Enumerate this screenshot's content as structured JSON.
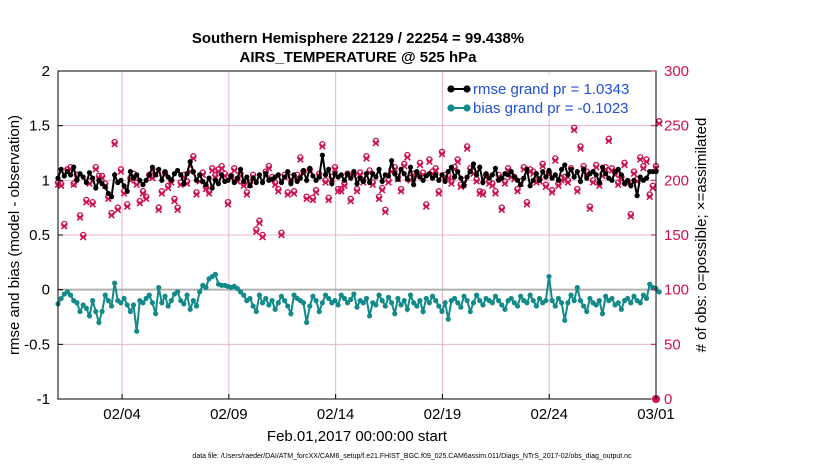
{
  "chart_data": {
    "type": "line",
    "title_line1": "Southern Hemisphere 22129 / 22254 = 99.438%",
    "title_line2": "AIRS_TEMPERATURE @ 525 hPa",
    "xlabel": "Feb.01,2017 00:00:00 start",
    "ylabel_left": "rmse and bias (model - observation)",
    "ylabel_right": "# of obs: o=possible; ×=assimilated",
    "footer": "data file: /Users/raeder/DAI/ATM_forcXX/CAM6_setup/f.e21.FHIST_BGC.f09_025.CAM6assim.011/Diags_NTrS_2017-02/obs_diag_output.nc",
    "x_ticks": [
      "02/04",
      "02/09",
      "02/14",
      "02/19",
      "02/24",
      "03/01"
    ],
    "x_tick_days": [
      3,
      8,
      13,
      18,
      23,
      28
    ],
    "xlim_days": [
      0,
      28
    ],
    "ylim_left": [
      -1,
      2
    ],
    "yticks_left": [
      "-1",
      "-0.5",
      "0",
      "0.5",
      "1",
      "1.5",
      "2"
    ],
    "ylim_right": [
      0,
      300
    ],
    "yticks_right": [
      "0",
      "50",
      "100",
      "150",
      "200",
      "250",
      "300"
    ],
    "legend": [
      {
        "label": "rmse grand pr = 1.0343",
        "color": "#000000"
      },
      {
        "label": "bias grand pr = -0.1023",
        "color": "#138a8a"
      }
    ],
    "colors": {
      "rmse": "#000000",
      "bias": "#138a8a",
      "obs": "#cc1155",
      "zero_line": "#b0b0b0",
      "grid": "#e8b5c8"
    },
    "rmse": [
      1.02,
      1.1,
      1.04,
      1.08,
      1.05,
      1.12,
      1.0,
      1.06,
      1.03,
      0.98,
      1.07,
      1.02,
      0.93,
      1.0,
      0.97,
      0.94,
      0.88,
      0.85,
      1.05,
      0.98,
      1.0,
      0.95,
      0.9,
      1.08,
      1.02,
      1.05,
      1.0,
      0.96,
      1.0,
      1.05,
      1.12,
      1.05,
      1.1,
      1.0,
      1.08,
      1.03,
      1.0,
      1.06,
      1.09,
      1.05,
      0.97,
      1.06,
      1.17,
      1.08,
      1.0,
      1.05,
      0.99,
      0.96,
      1.02,
      0.93,
      1.0,
      0.97,
      1.05,
      0.99,
      1.0,
      1.04,
      0.98,
      1.02,
      1.1,
      0.99,
      1.03,
      0.95,
      1.02,
      0.98,
      1.05,
      0.98,
      1.06,
      1.0,
      1.01,
      1.03,
      1.05,
      0.98,
      1.03,
      1.08,
      0.97,
      1.05,
      0.99,
      1.02,
      1.09,
      1.0,
      1.11,
      1.04,
      1.0,
      1.03,
      1.23,
      1.05,
      1.1,
      0.97,
      1.06,
      1.03,
      1.05,
      1.0,
      1.06,
      1.02,
      1.08,
      0.97,
      1.02,
      0.99,
      1.06,
      0.98,
      1.06,
      1.03,
      1.1,
      0.99,
      1.05,
      1.04,
      1.18,
      1.06,
      1.01,
      1.1,
      1.06,
      1.01,
      1.12,
      0.96,
      1.08,
      1.03,
      1.0,
      1.04,
      1.06,
      1.02,
      1.05,
      1.0,
      1.05,
      0.99,
      1.08,
      1.12,
      1.03,
      1.08,
      1.02,
      0.95,
      1.03,
      1.08,
      1.15,
      1.05,
      1.12,
      0.98,
      1.06,
      1.02,
      1.05,
      1.11,
      1.0,
      1.02,
      1.06,
      1.05,
      1.08,
      1.03,
      1.0,
      0.96,
      1.02,
      1.1,
      0.95,
      1.0,
      1.06,
      1.0,
      1.08,
      1.03,
      1.09,
      1.02,
      1.05,
      1.0,
      1.1,
      1.14,
      1.05,
      1.1,
      1.03,
      1.08,
      0.99,
      1.1,
      1.02,
      1.06,
      1.08,
      1.05,
      0.98,
      1.12,
      1.06,
      1.02,
      1.0,
      1.08,
      1.1,
      1.05,
      0.97,
      1.0,
      0.95,
      1.0,
      0.86,
      1.03,
      1.0,
      1.02,
      1.08,
      1.08,
      1.08
    ],
    "bias": [
      -0.13,
      -0.08,
      -0.04,
      -0.02,
      -0.05,
      -0.1,
      -0.12,
      -0.2,
      -0.14,
      -0.17,
      -0.24,
      -0.1,
      -0.2,
      -0.3,
      -0.2,
      -0.05,
      -0.1,
      -0.15,
      0.06,
      -0.1,
      -0.12,
      -0.08,
      -0.14,
      -0.2,
      -0.14,
      -0.38,
      -0.1,
      -0.12,
      -0.08,
      -0.05,
      -0.12,
      -0.22,
      0.02,
      -0.12,
      -0.06,
      -0.15,
      -0.1,
      -0.04,
      -0.02,
      -0.1,
      -0.13,
      -0.05,
      -0.18,
      -0.1,
      -0.15,
      -0.02,
      0.04,
      0.02,
      0.1,
      0.12,
      0.14,
      0.05,
      0.04,
      0.04,
      0.03,
      0.02,
      0.03,
      0.01,
      -0.02,
      -0.05,
      -0.1,
      -0.08,
      -0.15,
      -0.2,
      -0.05,
      -0.12,
      -0.08,
      -0.14,
      -0.1,
      -0.18,
      -0.12,
      -0.06,
      -0.1,
      -0.15,
      -0.22,
      -0.05,
      -0.08,
      -0.1,
      -0.12,
      -0.3,
      -0.15,
      -0.06,
      -0.1,
      -0.2,
      -0.12,
      -0.05,
      -0.08,
      -0.12,
      -0.1,
      -0.14,
      -0.05,
      -0.08,
      -0.12,
      -0.09,
      -0.04,
      -0.16,
      -0.1,
      -0.12,
      -0.08,
      -0.24,
      -0.12,
      -0.14,
      -0.05,
      -0.1,
      -0.15,
      -0.07,
      -0.12,
      -0.22,
      -0.08,
      -0.14,
      -0.1,
      -0.18,
      -0.05,
      -0.12,
      -0.15,
      -0.1,
      -0.2,
      -0.08,
      -0.12,
      -0.06,
      -0.1,
      -0.15,
      -0.2,
      -0.12,
      -0.27,
      -0.1,
      -0.08,
      -0.12,
      -0.16,
      -0.06,
      -0.1,
      -0.2,
      -0.12,
      -0.05,
      -0.1,
      -0.14,
      -0.08,
      -0.1,
      -0.12,
      -0.06,
      -0.1,
      -0.14,
      -0.18,
      -0.1,
      -0.08,
      -0.12,
      -0.15,
      -0.06,
      -0.1,
      -0.12,
      -0.05,
      -0.1,
      -0.15,
      -0.08,
      -0.12,
      -0.1,
      0.12,
      -0.1,
      -0.15,
      -0.08,
      -0.12,
      -0.28,
      -0.12,
      -0.05,
      -0.1,
      0.02,
      -0.1,
      -0.15,
      -0.2,
      -0.08,
      -0.12,
      -0.14,
      -0.1,
      -0.22,
      -0.06,
      -0.1,
      -0.08,
      -0.14,
      -0.12,
      -0.18,
      -0.1,
      -0.08,
      -0.12,
      -0.06,
      -0.1,
      -0.12,
      -0.05,
      -0.08,
      0.05,
      0.02,
      0.01,
      -0.02
    ],
    "obs_possible": [
      198,
      197,
      160,
      210,
      212,
      197,
      205,
      168,
      150,
      182,
      199,
      180,
      212,
      204,
      204,
      197,
      185,
      170,
      235,
      175,
      210,
      190,
      178,
      202,
      206,
      198,
      181,
      190,
      185,
      205,
      204,
      208,
      175,
      190,
      207,
      195,
      200,
      183,
      175,
      198,
      205,
      199,
      210,
      222,
      189,
      201,
      207,
      194,
      190,
      211,
      205,
      210,
      213,
      206,
      180,
      204,
      211,
      201,
      206,
      197,
      189,
      198,
      205,
      155,
      163,
      150,
      208,
      213,
      203,
      198,
      192,
      152,
      205,
      189,
      203,
      190,
      205,
      221,
      208,
      185,
      210,
      184,
      191,
      206,
      233,
      200,
      184,
      203,
      212,
      192,
      192,
      197,
      206,
      183,
      206,
      192,
      207,
      200,
      222,
      209,
      198,
      236,
      185,
      193,
      173,
      200,
      210,
      212,
      203,
      192,
      215,
      223,
      202,
      206,
      206,
      216,
      207,
      178,
      219,
      208,
      211,
      190,
      226,
      205,
      204,
      199,
      212,
      219,
      196,
      200,
      231,
      211,
      208,
      201,
      190,
      189,
      205,
      199,
      197,
      190,
      205,
      175,
      199,
      211,
      205,
      203,
      192,
      199,
      212,
      180,
      210,
      208,
      200,
      201,
      215,
      196,
      207,
      191,
      220,
      197,
      202,
      203,
      200,
      211,
      248,
      192,
      231,
      213,
      208,
      176,
      200,
      214,
      197,
      206,
      212,
      238,
      211,
      207,
      198,
      203,
      216,
      199,
      169,
      208,
      201,
      221,
      213,
      219,
      187,
      195,
      213,
      254
    ],
    "obs_assimilated": [
      196,
      195,
      158,
      209,
      210,
      196,
      203,
      166,
      148,
      180,
      197,
      178,
      210,
      202,
      202,
      195,
      183,
      168,
      233,
      173,
      208,
      188,
      176,
      200,
      204,
      196,
      179,
      188,
      183,
      203,
      202,
      206,
      173,
      188,
      205,
      193,
      198,
      181,
      173,
      196,
      203,
      197,
      208,
      220,
      187,
      199,
      205,
      192,
      188,
      209,
      203,
      208,
      211,
      204,
      178,
      202,
      209,
      199,
      204,
      195,
      187,
      196,
      203,
      153,
      161,
      148,
      206,
      211,
      201,
      196,
      190,
      150,
      203,
      187,
      201,
      188,
      203,
      219,
      206,
      183,
      208,
      182,
      189,
      204,
      231,
      198,
      182,
      201,
      210,
      190,
      190,
      195,
      204,
      181,
      204,
      190,
      205,
      198,
      220,
      207,
      196,
      234,
      183,
      191,
      171,
      198,
      208,
      210,
      201,
      190,
      213,
      221,
      200,
      204,
      204,
      214,
      205,
      176,
      217,
      206,
      209,
      188,
      224,
      203,
      202,
      197,
      210,
      217,
      194,
      198,
      229,
      209,
      206,
      199,
      188,
      187,
      203,
      197,
      195,
      188,
      203,
      173,
      197,
      209,
      203,
      201,
      190,
      197,
      210,
      178,
      208,
      206,
      198,
      199,
      213,
      194,
      205,
      189,
      218,
      195,
      200,
      201,
      198,
      209,
      246,
      190,
      229,
      211,
      206,
      174,
      198,
      212,
      195,
      204,
      210,
      236,
      209,
      205,
      196,
      201,
      214,
      197,
      167,
      206,
      199,
      219,
      211,
      217,
      185,
      193,
      211,
      252
    ]
  }
}
